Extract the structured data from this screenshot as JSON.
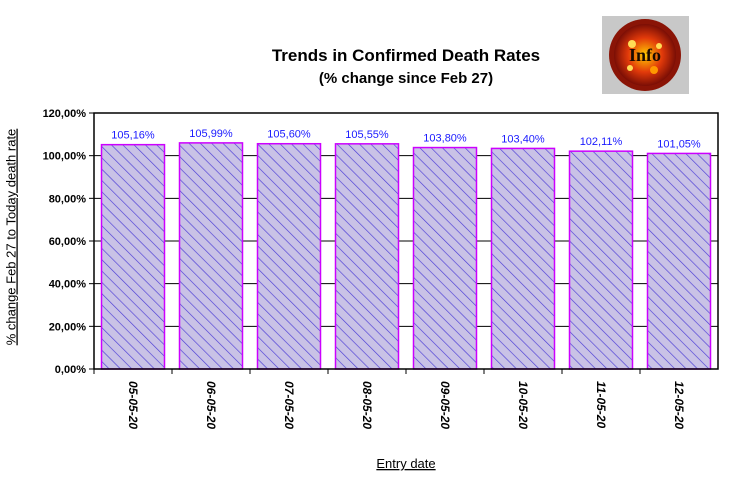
{
  "logo": {
    "text": "Info",
    "icon": "virus-info-logo"
  },
  "colors": {
    "bar_fill": "#c9c2e6",
    "bar_stroke": "#cc00ff",
    "hatch": "#4b3cd6",
    "label": "#1a1aff"
  },
  "chart_data": {
    "type": "bar",
    "title": "Trends in Confirmed Death Rates",
    "subtitle": "(% change since Feb 27)",
    "xlabel": "Entry date",
    "ylabel": "% change Feb 27 to Today death rate",
    "categories": [
      "05-05-20",
      "06-05-20",
      "07-05-20",
      "08-05-20",
      "09-05-20",
      "10-05-20",
      "11-05-20",
      "12-05-20"
    ],
    "values": [
      105.16,
      105.99,
      105.6,
      105.55,
      103.8,
      103.4,
      102.11,
      101.05
    ],
    "data_labels": [
      "105,16%",
      "105,99%",
      "105,60%",
      "105,55%",
      "103,80%",
      "103,40%",
      "102,11%",
      "101,05%"
    ],
    "ylim": [
      0,
      120
    ],
    "yticks": [
      0,
      20,
      40,
      60,
      80,
      100,
      120
    ],
    "ytick_labels": [
      "0,00%",
      "20,00%",
      "40,00%",
      "60,00%",
      "80,00%",
      "100,00%",
      "120,00%"
    ],
    "grid": true,
    "legend": "none"
  }
}
